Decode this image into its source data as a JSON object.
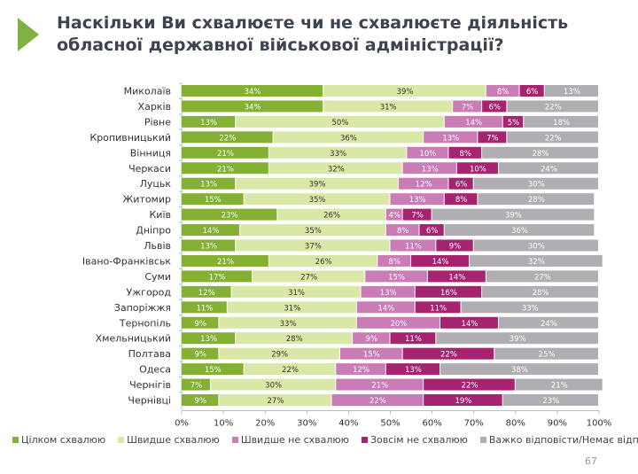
{
  "title": "Наскільки Ви схвалюєте чи не схвалюєте діяльність обласної державної військової адміністрації?",
  "page_number": "67",
  "chart_data": {
    "type": "bar",
    "orientation": "horizontal",
    "stacked": true,
    "categories": [
      "Миколаїв",
      "Харків",
      "Рівне",
      "Кропивницький",
      "Вінниця",
      "Черкаси",
      "Луцьк",
      "Житомир",
      "Київ",
      "Дніпро",
      "Львів",
      "Івано-Франківськ",
      "Суми",
      "Ужгород",
      "Запоріжжя",
      "Тернопіль",
      "Хмельницький",
      "Полтава",
      "Одеса",
      "Чернігів",
      "Чернівці"
    ],
    "series": [
      {
        "name": "Цілком схвалюю",
        "color": "#84b034",
        "values": [
          34,
          34,
          13,
          22,
          21,
          21,
          13,
          15,
          23,
          14,
          13,
          21,
          17,
          12,
          11,
          9,
          13,
          9,
          15,
          7,
          9
        ]
      },
      {
        "name": "Швидше схвалюю",
        "color": "#d9e8a6",
        "values": [
          39,
          31,
          50,
          36,
          33,
          32,
          39,
          35,
          26,
          35,
          37,
          26,
          27,
          31,
          31,
          33,
          28,
          29,
          22,
          30,
          27
        ]
      },
      {
        "name": "Швидше не схвалюю",
        "color": "#c97cb6",
        "values": [
          8,
          7,
          14,
          13,
          10,
          13,
          12,
          13,
          4,
          8,
          11,
          8,
          15,
          13,
          14,
          20,
          9,
          15,
          12,
          21,
          22
        ]
      },
      {
        "name": "Зовсім не схвалюю",
        "color": "#a6246f",
        "values": [
          6,
          6,
          5,
          7,
          8,
          10,
          6,
          8,
          7,
          6,
          9,
          14,
          14,
          16,
          11,
          14,
          11,
          22,
          13,
          22,
          19
        ]
      },
      {
        "name": "Важко відповісти/Немає відповіді",
        "color": "#b1aeb3",
        "values": [
          13,
          22,
          18,
          22,
          28,
          24,
          30,
          28,
          39,
          36,
          30,
          32,
          27,
          28,
          33,
          24,
          39,
          25,
          38,
          21,
          23
        ]
      }
    ],
    "xticks": [
      "0%",
      "10%",
      "20%",
      "30%",
      "40%",
      "50%",
      "60%",
      "70%",
      "80%",
      "90%",
      "100%"
    ],
    "xlim": [
      0,
      100
    ],
    "grid": false,
    "legend_position": "bottom"
  }
}
